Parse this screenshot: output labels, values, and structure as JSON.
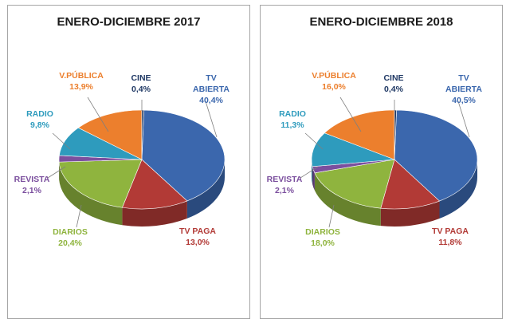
{
  "chart_data": [
    {
      "type": "pie",
      "title": "ENERO-DICIEMBRE 2017",
      "slices": [
        {
          "name": "TV ABIERTA",
          "label_lines": [
            "TV",
            "ABIERTA"
          ],
          "value": 40.4,
          "display": "40,4%",
          "color": "#3b67ad"
        },
        {
          "name": "TV PAGA",
          "label_lines": [
            "TV PAGA"
          ],
          "value": 13.0,
          "display": "13,0%",
          "color": "#b23a36"
        },
        {
          "name": "DIARIOS",
          "label_lines": [
            "DIARIOS"
          ],
          "value": 20.4,
          "display": "20,4%",
          "color": "#8fb43e"
        },
        {
          "name": "REVISTA",
          "label_lines": [
            "REVISTA"
          ],
          "value": 2.1,
          "display": "2,1%",
          "color": "#7b4f9e"
        },
        {
          "name": "RADIO",
          "label_lines": [
            "RADIO"
          ],
          "value": 9.8,
          "display": "9,8%",
          "color": "#2e9bbd"
        },
        {
          "name": "V.PÚBLICA",
          "label_lines": [
            "V.PÚBLICA"
          ],
          "value": 13.9,
          "display": "13,9%",
          "color": "#ec7f2d"
        },
        {
          "name": "CINE",
          "label_lines": [
            "CINE"
          ],
          "value": 0.4,
          "display": "0,4%",
          "color": "#1f3864"
        }
      ]
    },
    {
      "type": "pie",
      "title": "ENERO-DICIEMBRE 2018",
      "slices": [
        {
          "name": "TV ABIERTA",
          "label_lines": [
            "TV",
            "ABIERTA"
          ],
          "value": 40.5,
          "display": "40,5%",
          "color": "#3b67ad"
        },
        {
          "name": "TV PAGA",
          "label_lines": [
            "TV PAGA"
          ],
          "value": 11.8,
          "display": "11,8%",
          "color": "#b23a36"
        },
        {
          "name": "DIARIOS",
          "label_lines": [
            "DIARIOS"
          ],
          "value": 18.0,
          "display": "18,0%",
          "color": "#8fb43e"
        },
        {
          "name": "REVISTA",
          "label_lines": [
            "REVISTA"
          ],
          "value": 2.1,
          "display": "2,1%",
          "color": "#7b4f9e"
        },
        {
          "name": "RADIO",
          "label_lines": [
            "RADIO"
          ],
          "value": 11.3,
          "display": "11,3%",
          "color": "#2e9bbd"
        },
        {
          "name": "V.PÚBLICA",
          "label_lines": [
            "V.PÚBLICA"
          ],
          "value": 16.0,
          "display": "16,0%",
          "color": "#ec7f2d"
        },
        {
          "name": "CINE",
          "label_lines": [
            "CINE"
          ],
          "value": 0.4,
          "display": "0,4%",
          "color": "#1f3864"
        }
      ]
    }
  ]
}
